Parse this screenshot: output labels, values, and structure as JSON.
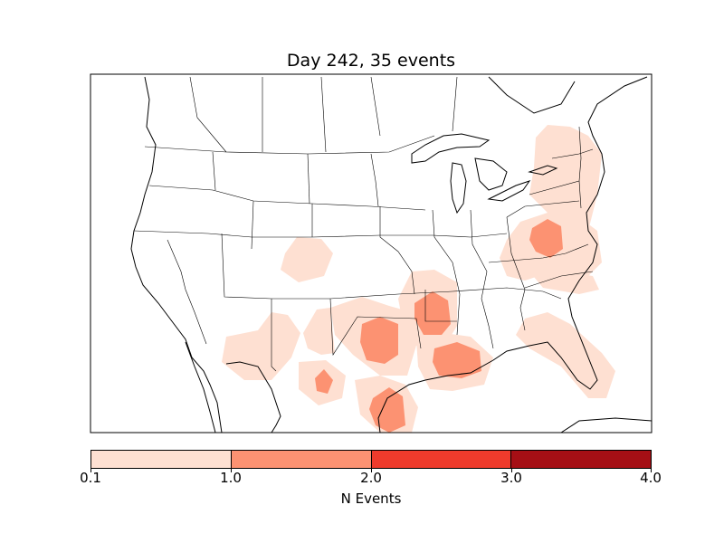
{
  "title": "Day 242, 35 events",
  "colorbar": {
    "label": "N Events",
    "ticks": [
      "0.1",
      "1.0",
      "2.0",
      "3.0",
      "4.0"
    ],
    "bins": [
      {
        "range": "0.1-1.0",
        "color": "#fee0d2"
      },
      {
        "range": "1.0-2.0",
        "color": "#fc9272"
      },
      {
        "range": "2.0-3.0",
        "color": "#ef3b2c"
      },
      {
        "range": "3.0-4.0",
        "color": "#a50f15"
      }
    ]
  },
  "map": {
    "region": "Contiguous United States",
    "projection": "Lambert conformal",
    "event_regions": [
      {
        "area": "Northeast / New York",
        "level": "0.1-1.0"
      },
      {
        "area": "Virginia / Mid-Atlantic",
        "level": "0.1-1.0"
      },
      {
        "area": "Central Virginia",
        "level": "1.0-2.0"
      },
      {
        "area": "Colorado / Kansas border",
        "level": "0.1-1.0"
      },
      {
        "area": "Arkansas",
        "level": "1.0-2.0"
      },
      {
        "area": "Oklahoma",
        "level": "1.0-2.0"
      },
      {
        "area": "Louisiana coast",
        "level": "1.0-2.0"
      },
      {
        "area": "New Mexico / Arizona",
        "level": "0.1-1.0"
      },
      {
        "area": "West Texas",
        "level": "1.0-2.0"
      },
      {
        "area": "South Texas coast",
        "level": "1.0-2.0"
      },
      {
        "area": "Florida",
        "level": "0.1-1.0"
      },
      {
        "area": "Carolinas",
        "level": "0.1-1.0"
      }
    ]
  }
}
